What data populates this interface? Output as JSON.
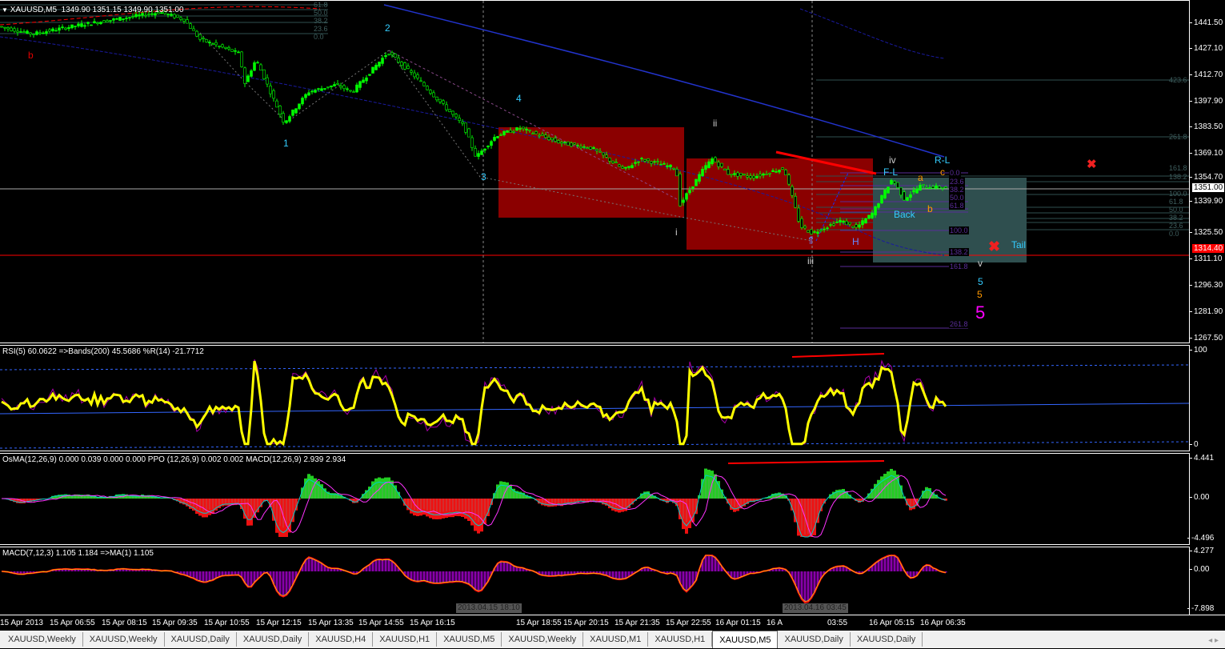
{
  "header": {
    "symbol": "XAUUSD,M5",
    "ohlc": "1349.90 1351.15 1349.90 1351.00"
  },
  "price_axis": {
    "ticks": [
      "1441.50",
      "1427.10",
      "1412.70",
      "1397.90",
      "1383.50",
      "1369.10",
      "1354.70",
      "1339.90",
      "1325.50",
      "1311.10",
      "1296.30",
      "1281.90",
      "1267.50"
    ],
    "current": "1351.00",
    "line_price": "1314.40"
  },
  "colors": {
    "bull": "#00ff00",
    "bear": "#000000",
    "box_red": "#8b0000",
    "box_teal": "#2f4f4f",
    "rsi": "#ffff00",
    "accent_line": "#ff0000"
  },
  "waves": {
    "b": "b",
    "w1": "1",
    "w2": "2",
    "w3": "3",
    "w4": "4",
    "i": "i",
    "ii": "ii",
    "iii": "iii",
    "iv": "iv",
    "v": "v",
    "fl": "F-L",
    "rl": "R-L",
    "a": "a",
    "c": "c",
    "b2": "b",
    "back": "Back",
    "h": "H",
    "tail": "Tail",
    "five_a": "5",
    "five_b": "5",
    "five_c": "5"
  },
  "fib_box": [
    "0.0",
    "23.6",
    "38.2",
    "50.0",
    "61.8",
    "100.0",
    "138.2",
    "161.8",
    "261.8"
  ],
  "fib_right": [
    "423.6",
    "261.8",
    "161.8",
    "138.2",
    "100.0",
    "61.8",
    "50.0",
    "38.2",
    "23.6",
    "0.0"
  ],
  "fib_top": [
    "61.8",
    "50.0",
    "38.2",
    "23.6",
    "0.0"
  ],
  "rsi": {
    "label": "RSI(5) 60.0622  =>Bands(200) 45.5686  %R(14) -21.7712",
    "axis": [
      "100",
      "0"
    ]
  },
  "osma": {
    "label": "OsMA(12,26,9) 0.000 0.039 0.000 0.000   PPO (12,26,9) 0.002 0.002   MACD(12,26,9) 2.939 2.934",
    "axis": [
      "4.441",
      "0.00",
      "-4.496"
    ]
  },
  "macd": {
    "label": "MACD(7,12,3) 1.105 1.184   =>MA(1) 1.105",
    "axis": [
      "4.277",
      "0.00",
      "-7.898"
    ]
  },
  "time_axis": [
    "15 Apr 2013",
    "15 Apr 06:55",
    "15 Apr 08:15",
    "15 Apr 09:35",
    "15 Apr 10:55",
    "15 Apr 12:15",
    "15 Apr 13:35",
    "15 Apr 14:55",
    "15 Apr 16:15",
    "15 Apr 18:55",
    "15 Apr 20:15",
    "15 Apr 21:35",
    "15 Apr 22:55",
    "16 Apr 01:15",
    "16 A",
    "03:55",
    "16 Apr 05:15",
    "16 Apr 06:35"
  ],
  "crosshair_times": [
    "2013.04.15 18:10",
    "2013.04.16 03:45"
  ],
  "tabs": [
    "XAUUSD,Weekly",
    "XAUUSD,Weekly",
    "XAUUSD,Daily",
    "XAUUSD,Daily",
    "XAUUSD,H4",
    "XAUUSD,H1",
    "XAUUSD,M5",
    "XAUUSD,Weekly",
    "XAUUSD,M1",
    "XAUUSD,H1",
    "XAUUSD,M5",
    "XAUUSD,Daily",
    "XAUUSD,Daily"
  ],
  "active_tab": 10
}
